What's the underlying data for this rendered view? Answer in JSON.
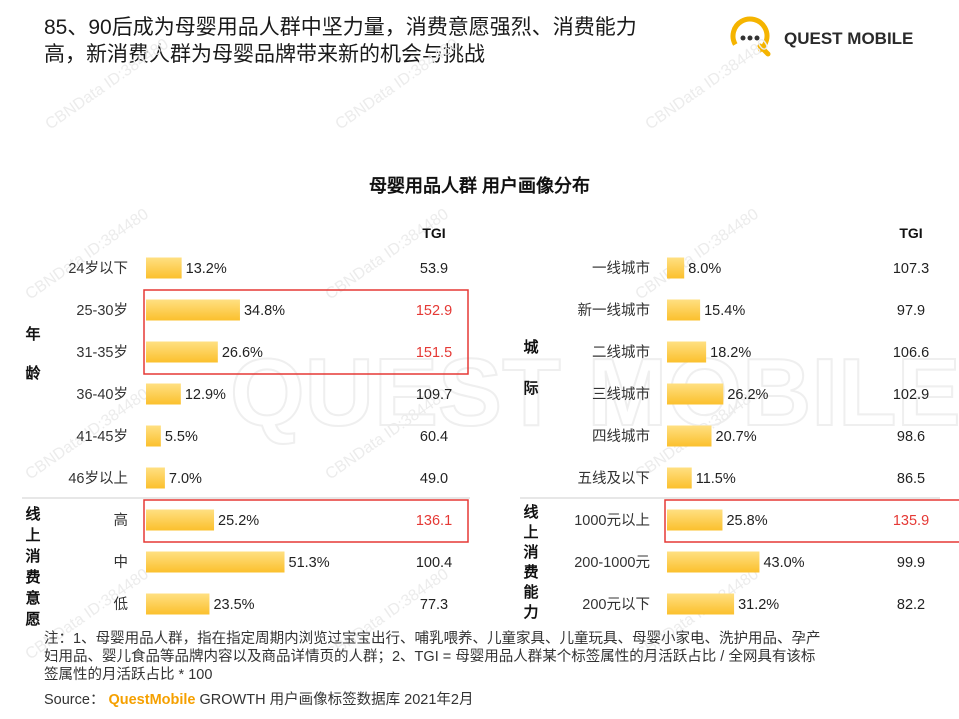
{
  "header": {
    "title_line1": "85、90后成为母婴用品人群中坚力量，消费意愿强烈、消费能力",
    "title_line2": "高，新消费人群为母婴品牌带来新的机会与挑战"
  },
  "logo": {
    "text": "QUEST MOBILE",
    "icon": "quest-mobile-logo-icon"
  },
  "watermark": {
    "text": "CBNData ID:384480",
    "big_text": "QUEST MOBILE"
  },
  "chart_title": "母婴用品人群 用户画像分布",
  "colors": {
    "bar": "#fbc02d",
    "bar_light": "#ffe082",
    "highlight": "#e53935",
    "separator": "#cfcfcf"
  },
  "chart_data": [
    {
      "type": "bar",
      "orientation": "horizontal",
      "tgi_header": "TGI",
      "groups": [
        {
          "label": "年龄",
          "categories": [
            "24岁以下",
            "25-30岁",
            "31-35岁",
            "36-40岁",
            "41-45岁",
            "46岁以上"
          ],
          "values": [
            13.2,
            34.8,
            26.6,
            12.9,
            5.5,
            7.0
          ],
          "value_labels": [
            "13.2%",
            "34.8%",
            "26.6%",
            "12.9%",
            "5.5%",
            "7.0%"
          ],
          "tgi": [
            "53.9",
            "152.9",
            "151.5",
            "109.7",
            "60.4",
            "49.0"
          ],
          "highlighted": [
            false,
            true,
            true,
            false,
            false,
            false
          ]
        },
        {
          "label": "线上消费意愿",
          "categories": [
            "高",
            "中",
            "低"
          ],
          "values": [
            25.2,
            51.3,
            23.5
          ],
          "value_labels": [
            "25.2%",
            "51.3%",
            "23.5%"
          ],
          "tgi": [
            "136.1",
            "100.4",
            "77.3"
          ],
          "highlighted": [
            true,
            false,
            false
          ]
        }
      ]
    },
    {
      "type": "bar",
      "orientation": "horizontal",
      "tgi_header": "TGI",
      "groups": [
        {
          "label": "城际",
          "categories": [
            "一线城市",
            "新一线城市",
            "二线城市",
            "三线城市",
            "四线城市",
            "五线及以下"
          ],
          "values": [
            8.0,
            15.4,
            18.2,
            26.2,
            20.7,
            11.5
          ],
          "value_labels": [
            "8.0%",
            "15.4%",
            "18.2%",
            "26.2%",
            "20.7%",
            "11.5%"
          ],
          "tgi": [
            "107.3",
            "97.9",
            "106.6",
            "102.9",
            "98.6",
            "86.5"
          ],
          "highlighted": [
            false,
            false,
            false,
            false,
            false,
            false
          ]
        },
        {
          "label": "线上消费能力",
          "categories": [
            "1000元以上",
            "200-1000元",
            "200元以下"
          ],
          "values": [
            25.8,
            43.0,
            31.2
          ],
          "value_labels": [
            "25.8%",
            "43.0%",
            "31.2%"
          ],
          "tgi": [
            "135.9",
            "99.9",
            "82.2"
          ],
          "highlighted": [
            true,
            false,
            false
          ]
        }
      ]
    }
  ],
  "notes": {
    "line1": "注：1、母婴用品人群，指在指定周期内浏览过宝宝出行、哺乳喂养、儿童家具、儿童玩具、母婴小家电、洗护用品、孕产",
    "line2": "妇用品、婴儿食品等品牌内容以及商品详情页的人群；2、TGI = 母婴用品人群某个标签属性的月活跃占比 / 全网具有该标",
    "line3": "签属性的月活跃占比 * 100"
  },
  "source": {
    "prefix": "Source：",
    "brand": "QuestMobile",
    "rest": " GROWTH 用户画像标签数据库 2021年2月"
  }
}
